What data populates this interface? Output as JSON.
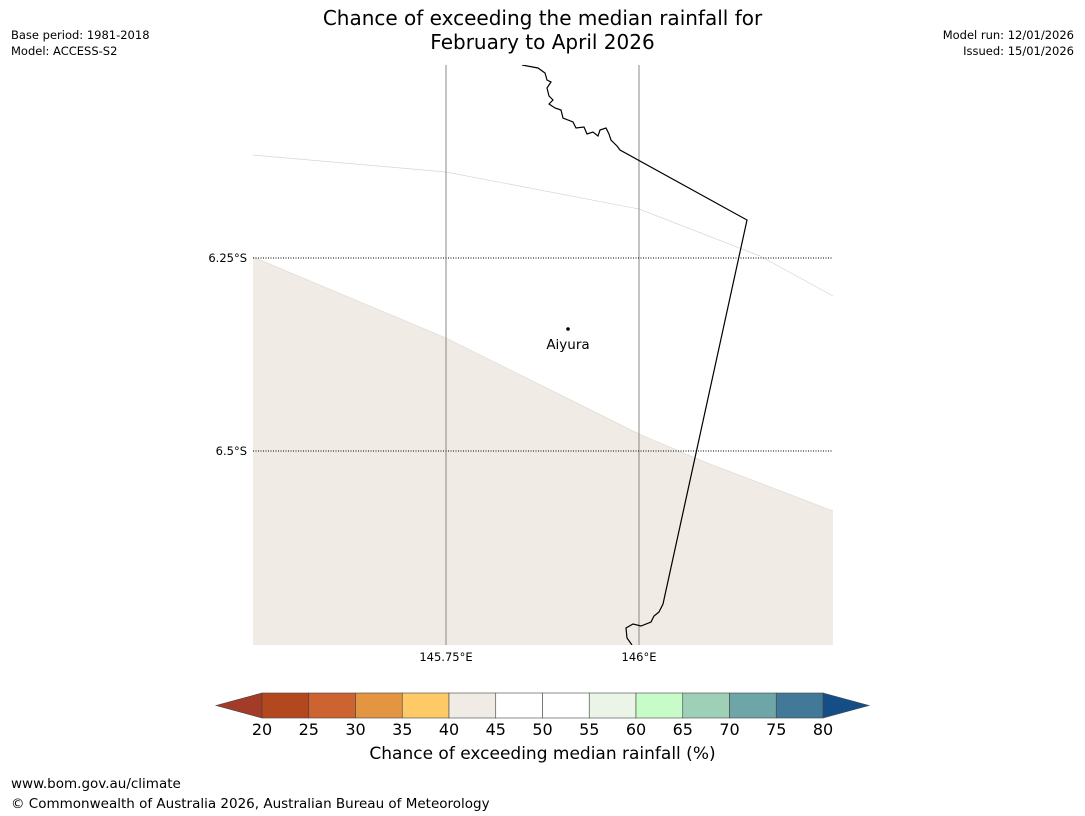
{
  "title": {
    "line1": "Chance of exceeding the median rainfall for",
    "line2": "February to April 2026"
  },
  "meta": {
    "base_period": "Base period: 1981-2018",
    "model": "Model: ACCESS-S2",
    "model_run": "Model run: 12/01/2026",
    "issued": "Issued: 15/01/2026"
  },
  "map": {
    "lat_labels": [
      "6.25°S",
      "6.5°S"
    ],
    "lon_labels": [
      "145.75°E",
      "146°E"
    ],
    "place": {
      "name": "Aiyura"
    },
    "regions": [
      {
        "category": "40-45",
        "color": "#f0ebe4"
      },
      {
        "category": "45-55",
        "color": "#ffffff"
      }
    ]
  },
  "colorbar": {
    "title": "Chance of exceeding median rainfall (%)",
    "ticks": [
      "20",
      "25",
      "30",
      "35",
      "40",
      "45",
      "50",
      "55",
      "60",
      "65",
      "70",
      "75",
      "80"
    ],
    "under_color": "#a23b27",
    "over_color": "#154d86",
    "colors": [
      "#b3481f",
      "#cc6330",
      "#e39542",
      "#fdca67",
      "#f0ebe4",
      "#ffffff",
      "#ffffff",
      "#eaf5e8",
      "#c7fbc8",
      "#9ed0b8",
      "#6ea6a7",
      "#427998"
    ]
  },
  "footer": {
    "url": "www.bom.gov.au/climate",
    "copyright": "© Commonwealth of Australia 2026, Australian Bureau of Meteorology"
  }
}
